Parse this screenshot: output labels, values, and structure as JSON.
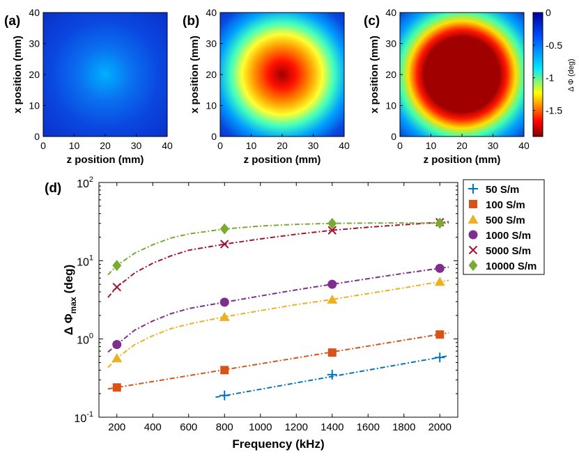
{
  "chart_data": [
    {
      "type": "heatmap",
      "panel_label": "(a)",
      "xlabel": "z position (mm)",
      "ylabel": "x position (mm)",
      "xlim": [
        0,
        40
      ],
      "ylim": [
        0,
        40
      ],
      "xticks": [
        "0",
        "10",
        "20",
        "30",
        "40"
      ],
      "yticks": [
        "0",
        "10",
        "20",
        "30",
        "40"
      ],
      "center_z_mm": 20,
      "center_x_mm": 19,
      "peak_delta_phi_deg": -0.45
    },
    {
      "type": "heatmap",
      "panel_label": "(b)",
      "xlabel": "z position (mm)",
      "ylabel": "x position (mm)",
      "xlim": [
        0,
        40
      ],
      "ylim": [
        0,
        40
      ],
      "xticks": [
        "0",
        "10",
        "20",
        "30",
        "40"
      ],
      "yticks": [
        "0",
        "10",
        "20",
        "30",
        "40"
      ],
      "center_z_mm": 19,
      "center_x_mm": 20,
      "peak_delta_phi_deg": -1.9
    },
    {
      "type": "heatmap",
      "panel_label": "(c)",
      "xlabel": "z position (mm)",
      "ylabel": "x position (mm)",
      "xlim": [
        0,
        40
      ],
      "ylim": [
        0,
        40
      ],
      "xticks": [
        "0",
        "10",
        "20",
        "30",
        "40"
      ],
      "yticks": [
        "0",
        "10",
        "20",
        "30",
        "40"
      ],
      "center_z_mm": 19,
      "center_x_mm": 20,
      "peak_delta_phi_deg": -1.9,
      "saturated": true,
      "colorbar": {
        "label": "Δ Φ (deg)",
        "range": [
          -1.9,
          0
        ],
        "ticks": [
          {
            "value": 0,
            "label": "0"
          },
          {
            "value": -0.5,
            "label": "-0.5"
          },
          {
            "value": -1,
            "label": "-1"
          },
          {
            "value": -1.5,
            "label": "-1.5"
          }
        ]
      }
    },
    {
      "type": "scatter",
      "panel_label": "(d)",
      "xlabel": "Frequency (kHz)",
      "ylabel_main": "Δ Φ",
      "ylabel_sub": "max",
      "ylabel_unit": "(deg)",
      "yscale": "log",
      "xlim": [
        100,
        2100
      ],
      "ylim": [
        0.1,
        100
      ],
      "xticks": [
        200,
        400,
        600,
        800,
        1000,
        1200,
        1400,
        1600,
        1800,
        2000
      ],
      "yticks": [
        {
          "value": 0.1,
          "base": "10",
          "exp": "-1"
        },
        {
          "value": 1,
          "base": "10",
          "exp": "0"
        },
        {
          "value": 10,
          "base": "10",
          "exp": "1"
        },
        {
          "value": 100,
          "base": "10",
          "exp": "2"
        }
      ],
      "legend_position": "outside-right-top",
      "series": [
        {
          "name": "50 S/m",
          "color": "#0072BD",
          "marker": "plus",
          "x": [
            800,
            1400,
            2000
          ],
          "y": [
            0.19,
            0.35,
            0.58
          ],
          "fit_x": [
            750,
            2050
          ],
          "fit_y": [
            0.18,
            0.61
          ]
        },
        {
          "name": "100 S/m",
          "color": "#D95319",
          "marker": "square",
          "x": [
            200,
            800,
            1400,
            2000
          ],
          "y": [
            0.24,
            0.4,
            0.67,
            1.14
          ],
          "fit_x": [
            150,
            2050
          ],
          "fit_y": [
            0.23,
            1.2
          ]
        },
        {
          "name": "500 S/m",
          "color": "#EDB120",
          "marker": "triangle",
          "x": [
            200,
            800,
            1400,
            2000
          ],
          "y": [
            0.57,
            1.92,
            3.2,
            5.4
          ],
          "fit_x": [
            150,
            200,
            300,
            400,
            500,
            600,
            800,
            1000,
            1200,
            1400,
            1600,
            1800,
            2000,
            2050
          ],
          "fit_y": [
            0.43,
            0.57,
            0.85,
            1.1,
            1.35,
            1.55,
            1.92,
            2.3,
            2.75,
            3.2,
            3.8,
            4.5,
            5.4,
            5.6
          ]
        },
        {
          "name": "1000 S/m",
          "color": "#7E2F8E",
          "marker": "circle",
          "x": [
            200,
            800,
            1400,
            2000
          ],
          "y": [
            0.85,
            2.95,
            5.0,
            8.0
          ],
          "fit_x": [
            150,
            200,
            300,
            400,
            500,
            600,
            800,
            1000,
            1200,
            1400,
            1600,
            1800,
            2000,
            2050
          ],
          "fit_y": [
            0.68,
            0.85,
            1.3,
            1.7,
            2.1,
            2.45,
            2.95,
            3.55,
            4.25,
            5.0,
            5.9,
            6.9,
            8.0,
            8.3
          ]
        },
        {
          "name": "5000 S/m",
          "color": "#A2142F",
          "marker": "x",
          "x": [
            200,
            800,
            1400,
            2000
          ],
          "y": [
            4.6,
            16.3,
            24.5,
            31.0
          ],
          "fit_x": [
            150,
            200,
            300,
            400,
            500,
            600,
            800,
            1000,
            1200,
            1400,
            1600,
            1800,
            2000,
            2050
          ],
          "fit_y": [
            3.4,
            4.6,
            7.0,
            9.3,
            11.5,
            13.6,
            16.3,
            19.0,
            21.8,
            24.5,
            26.8,
            28.9,
            31.0,
            31.4
          ]
        },
        {
          "name": "10000 S/m",
          "color": "#77AC30",
          "marker": "diamond",
          "x": [
            200,
            800,
            1400,
            2000
          ],
          "y": [
            8.7,
            25.5,
            30.0,
            30.2
          ],
          "fit_x": [
            150,
            200,
            300,
            400,
            500,
            600,
            800,
            1000,
            1200,
            1400,
            1600,
            1800,
            2000,
            2050
          ],
          "fit_y": [
            6.6,
            8.7,
            12.5,
            16.0,
            19.5,
            22.0,
            25.5,
            27.8,
            29.2,
            30.0,
            30.3,
            30.4,
            30.2,
            30.1
          ]
        }
      ]
    }
  ]
}
